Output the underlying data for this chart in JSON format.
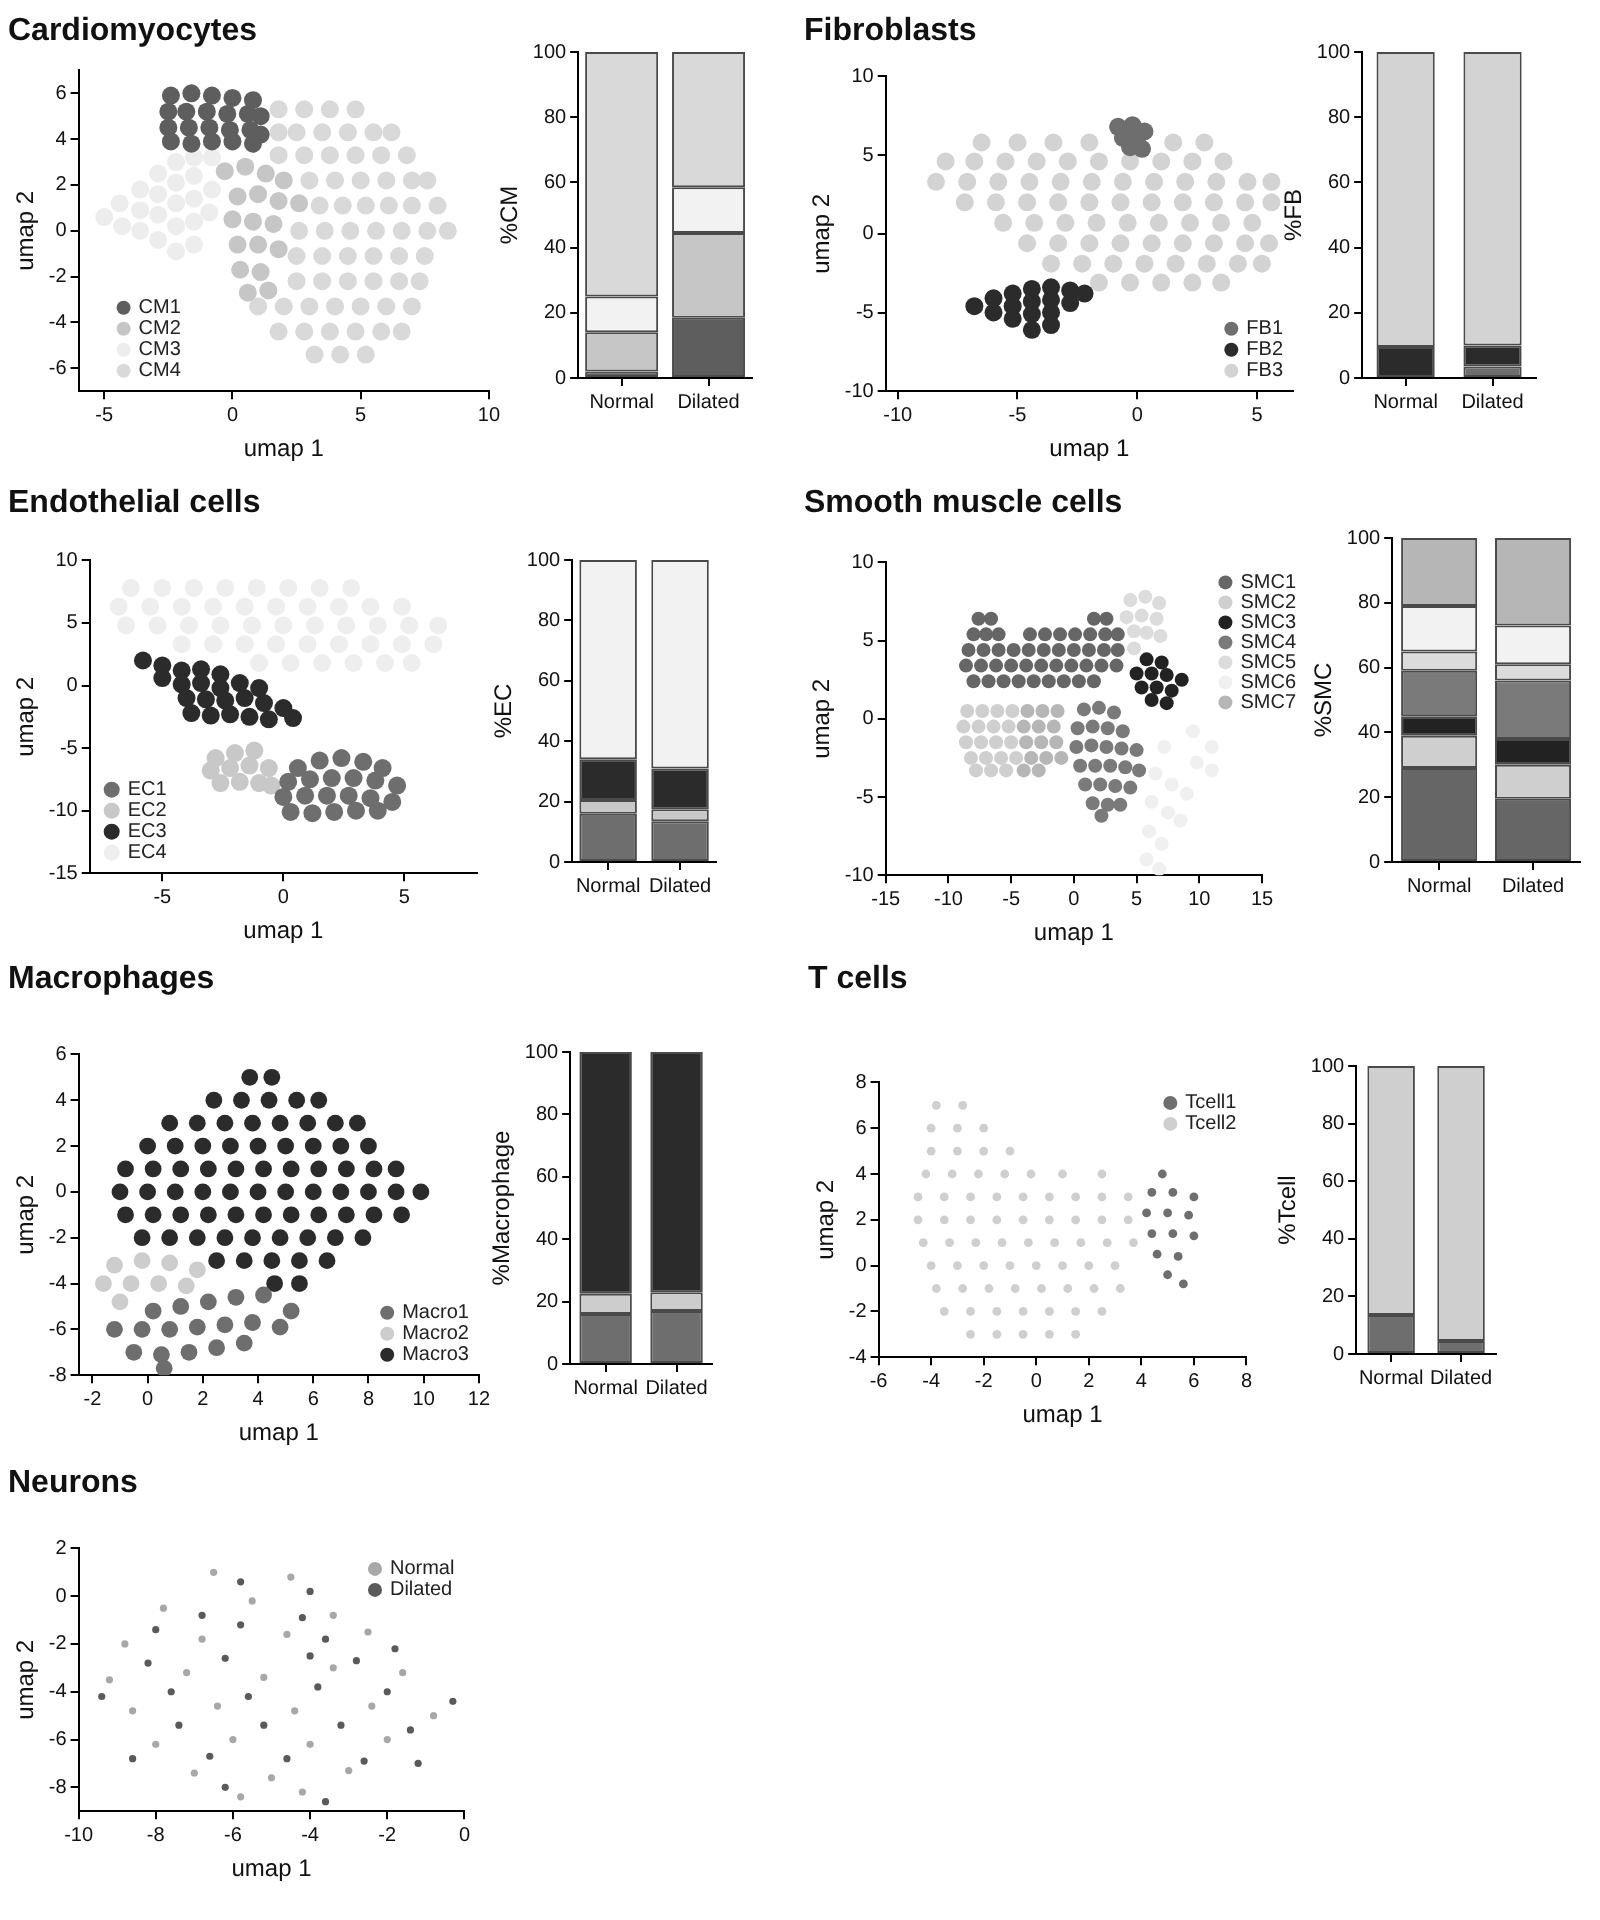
{
  "chart_data": [
    {
      "type": "scatter",
      "title": "Cardiomyocytes",
      "xlabel": "umap 1",
      "ylabel": "umap 2",
      "xlim": [
        -6,
        10
      ],
      "xticks": [
        -5,
        0,
        5,
        10
      ],
      "ylim": [
        -7,
        7
      ],
      "yticks": [
        -6,
        -4,
        -2,
        0,
        2,
        4,
        6
      ],
      "legend": "bottom left",
      "marker": "circle",
      "series": [
        {
          "name": "CM1",
          "color": "#5e5e5e",
          "x": [
            -2.4,
            -1.6,
            -0.8,
            0,
            0.8,
            -2.5,
            -1.8,
            -1,
            -0.2,
            0.6,
            1.1,
            -2.5,
            -1.7,
            -0.9,
            -0.1,
            0.7,
            1.1,
            -2.4,
            -1.6,
            -0.8,
            0,
            0.8
          ],
          "values": [
            5.9,
            6,
            5.9,
            5.8,
            5.7,
            5.2,
            5.2,
            5.2,
            5.1,
            5.1,
            5,
            4.5,
            4.5,
            4.5,
            4.4,
            4.4,
            4.2,
            3.9,
            3.8,
            3.9,
            3.9,
            3.8
          ]
        },
        {
          "name": "CM2",
          "color": "#c6c6c6",
          "x": [
            -0.3,
            0.5,
            1.3,
            2,
            0.2,
            1,
            1.8,
            2.6,
            0,
            0.8,
            1.6,
            0.2,
            1,
            1.8,
            0.3,
            1.1,
            0.6,
            1.4
          ],
          "values": [
            2.6,
            2.8,
            2.5,
            2.2,
            1.5,
            1.6,
            1.3,
            1.2,
            0.5,
            0.4,
            0.3,
            -0.6,
            -0.6,
            -0.8,
            -1.7,
            -1.8,
            -2.7,
            -2.6
          ]
        },
        {
          "name": "CM3",
          "color": "#ededed",
          "x": [
            -5,
            -4.4,
            -4.3,
            -3.6,
            -3.6,
            -3.6,
            -2.9,
            -2.9,
            -2.9,
            -2.9,
            -2.2,
            -2.2,
            -2.2,
            -2.2,
            -2.2,
            -1.5,
            -1.5,
            -1.5,
            -1.5,
            -1.5,
            -0.8,
            -0.8,
            -0.9
          ],
          "values": [
            0.6,
            1.2,
            0.2,
            1.8,
            0.9,
            0,
            2.5,
            1.6,
            0.7,
            -0.4,
            3,
            2.1,
            1.2,
            0.2,
            -0.9,
            3.2,
            2.4,
            1.4,
            0.4,
            -0.6,
            3.2,
            1.8,
            0.8
          ]
        },
        {
          "name": "CM4",
          "color": "#d9d9d9",
          "x": [
            1.8,
            2.8,
            3.8,
            4.8,
            1.8,
            2.5,
            3.5,
            4.5,
            5.5,
            6.2,
            1.8,
            2.8,
            3.8,
            4.8,
            5.8,
            6.8,
            3,
            4,
            5,
            6,
            7,
            7.6,
            3.4,
            4.3,
            5.2,
            6.1,
            7,
            8,
            2.6,
            3.6,
            4.6,
            5.6,
            6.6,
            7.6,
            8.4,
            2.5,
            3.5,
            4.5,
            5.5,
            6.5,
            7.5,
            2.5,
            3.5,
            4.5,
            5.5,
            6.5,
            7.3,
            1,
            2,
            3,
            4,
            5,
            6,
            7,
            1.8,
            2.8,
            3.8,
            4.8,
            5.8,
            6.6,
            3.2,
            4.2,
            5.2
          ],
          "values": [
            5.3,
            5.3,
            5.3,
            5.3,
            4.3,
            4.3,
            4.3,
            4.3,
            4.3,
            4.3,
            3.3,
            3.3,
            3.3,
            3.3,
            3.3,
            3.3,
            2.2,
            2.2,
            2.2,
            2.2,
            2.2,
            2.2,
            1.1,
            1.1,
            1.1,
            1.1,
            1.1,
            1.1,
            0,
            0,
            0,
            0,
            0,
            0,
            0,
            -1.1,
            -1.1,
            -1.1,
            -1.1,
            -1.1,
            -1.1,
            -2.2,
            -2.2,
            -2.2,
            -2.2,
            -2.2,
            -2.2,
            -3.3,
            -3.3,
            -3.3,
            -3.3,
            -3.3,
            -3.3,
            -3.3,
            -4.4,
            -4.4,
            -4.4,
            -4.4,
            -4.4,
            -4.4,
            -5.4,
            -5.4,
            -5.4
          ]
        }
      ]
    },
    {
      "type": "bar",
      "ylabel": "%CM",
      "categories": [
        "Normal",
        "Dilated"
      ],
      "stacked": true,
      "ylim": [
        0,
        100
      ],
      "yticks": [
        0,
        20,
        40,
        60,
        80,
        100
      ],
      "series": [
        {
          "color": "#5e5e5e",
          "values": [
            2,
            18.5
          ]
        },
        {
          "color": "#c6c6c6",
          "values": [
            12,
            26
          ]
        },
        {
          "color": "#f2f2f2",
          "values": [
            11,
            14
          ]
        },
        {
          "color": "#d9d9d9",
          "values": [
            75,
            41.5
          ]
        }
      ]
    },
    {
      "type": "scatter",
      "title": "Fibroblasts",
      "xlabel": "umap 1",
      "ylabel": "umap 2",
      "xlim": [
        -10.5,
        6.5
      ],
      "xticks": [
        -10,
        -5,
        0,
        5
      ],
      "ylim": [
        -10,
        10
      ],
      "yticks": [
        -10,
        -5,
        0,
        5,
        10
      ],
      "legend": "bottom right",
      "marker": "circle",
      "series": [
        {
          "name": "FB1",
          "color": "#6e6e6e",
          "x": [
            -0.8,
            -0.2,
            0.3,
            -0.6,
            0,
            -0.3,
            0.2
          ],
          "values": [
            6.8,
            6.9,
            6.5,
            6.1,
            6.1,
            5.5,
            5.4
          ]
        },
        {
          "name": "FB2",
          "color": "#2b2b2b",
          "x": [
            -6.8,
            -6,
            -6,
            -5.2,
            -5.2,
            -5.2,
            -4.4,
            -4.4,
            -4.4,
            -4.4,
            -3.6,
            -3.6,
            -3.6,
            -3.6,
            -2.8,
            -2.8,
            -2.2
          ],
          "values": [
            -4.6,
            -4.1,
            -5,
            -3.8,
            -4.6,
            -5.4,
            -3.5,
            -4.3,
            -5.1,
            -6.1,
            -3.4,
            -4.2,
            -5,
            -5.8,
            -3.6,
            -4.4,
            -3.8
          ]
        },
        {
          "name": "FB3",
          "color": "#d3d3d3",
          "x": [
            -6.5,
            -5,
            -3.5,
            -2,
            1.5,
            2.8,
            -8,
            -6.8,
            -5.5,
            -4.2,
            -2.9,
            -1.6,
            -0.3,
            1,
            2.3,
            3.6,
            -8.4,
            -7.1,
            -5.8,
            -4.5,
            -3.2,
            -1.9,
            -0.6,
            0.7,
            2,
            3.3,
            4.6,
            5.6,
            -7.2,
            -5.9,
            -4.6,
            -3.3,
            -2,
            -0.7,
            0.6,
            1.9,
            3.2,
            4.5,
            5.6,
            -5.6,
            -4.3,
            -3,
            -1.7,
            -0.4,
            0.9,
            2.2,
            3.5,
            4.8,
            -4.6,
            -3.3,
            -2,
            -0.7,
            0.6,
            1.9,
            3.2,
            4.5,
            5.5,
            -3.6,
            -2.3,
            -1,
            0.3,
            1.6,
            2.9,
            4.2,
            5.2,
            -1.6,
            -0.3,
            1,
            2.3,
            3.5
          ],
          "values": [
            5.8,
            5.8,
            5.8,
            5.8,
            5.8,
            5.8,
            4.6,
            4.6,
            4.6,
            4.6,
            4.6,
            4.6,
            4.6,
            4.6,
            4.6,
            4.6,
            3.3,
            3.3,
            3.3,
            3.3,
            3.3,
            3.3,
            3.3,
            3.3,
            3.3,
            3.3,
            3.3,
            3.3,
            2,
            2,
            2,
            2,
            2,
            2,
            2,
            2,
            2,
            2,
            2,
            0.7,
            0.7,
            0.7,
            0.7,
            0.7,
            0.7,
            0.7,
            0.7,
            0.7,
            -0.6,
            -0.6,
            -0.6,
            -0.6,
            -0.6,
            -0.6,
            -0.6,
            -0.6,
            -0.6,
            -1.9,
            -1.9,
            -1.9,
            -1.9,
            -1.9,
            -1.9,
            -1.9,
            -1.9,
            -3.1,
            -3.1,
            -3.1,
            -3.1,
            -3.1
          ]
        }
      ]
    },
    {
      "type": "bar",
      "ylabel": "%FB",
      "categories": [
        "Normal",
        "Dilated"
      ],
      "stacked": true,
      "ylim": [
        0,
        100
      ],
      "yticks": [
        0,
        20,
        40,
        60,
        80,
        100
      ],
      "series": [
        {
          "color": "#6e6e6e",
          "values": [
            0,
            3.5
          ]
        },
        {
          "color": "#2b2b2b",
          "values": [
            9.5,
            6.5
          ]
        },
        {
          "color": "#d3d3d3",
          "values": [
            90.5,
            90
          ]
        }
      ]
    },
    {
      "type": "scatter",
      "title": "Endothelial cells",
      "xlabel": "umap 1",
      "ylabel": "umap 2",
      "xlim": [
        -8,
        8
      ],
      "xticks": [
        -5,
        0,
        5
      ],
      "ylim": [
        -15,
        10
      ],
      "yticks": [
        -15,
        -10,
        -5,
        0,
        5,
        10
      ],
      "legend": "bottom left",
      "marker": "circle",
      "series": [
        {
          "name": "EC1",
          "color": "#6e6e6e",
          "x": [
            0.6,
            1.5,
            2.4,
            3.3,
            4.1,
            0.2,
            1.1,
            2,
            2.9,
            3.8,
            4.7,
            0,
            0.9,
            1.8,
            2.7,
            3.6,
            4.5,
            0.3,
            1.2,
            2.1,
            3,
            3.9
          ],
          "values": [
            -6.6,
            -6,
            -5.8,
            -6.1,
            -6.6,
            -7.7,
            -7.5,
            -7.4,
            -7.4,
            -7.6,
            -8,
            -8.9,
            -8.8,
            -8.8,
            -8.8,
            -9,
            -9.3,
            -10.1,
            -10.2,
            -10.1,
            -10,
            -10
          ]
        },
        {
          "name": "EC2",
          "color": "#c8c8c8",
          "x": [
            -2.8,
            -2,
            -1.2,
            -3,
            -2.2,
            -1.4,
            -0.6,
            -2.6,
            -1.8,
            -1,
            -0.5
          ],
          "values": [
            -5.8,
            -5.4,
            -5.2,
            -6.8,
            -6.6,
            -6.4,
            -6.6,
            -7.8,
            -7.7,
            -7.8,
            -8
          ]
        },
        {
          "name": "EC3",
          "color": "#2b2b2b",
          "x": [
            -5.8,
            -5,
            -4.2,
            -3.4,
            -2.6,
            -5,
            -4.2,
            -3.4,
            -2.6,
            -1.8,
            -1,
            -4,
            -3.2,
            -2.4,
            -1.6,
            -0.8,
            0,
            -3.8,
            -3,
            -2.2,
            -1.4,
            -0.6,
            0.4
          ],
          "values": [
            2,
            1.6,
            1.2,
            1.3,
            0.9,
            0.6,
            0.1,
            0.2,
            -0.2,
            0.2,
            -0.2,
            -1,
            -1.1,
            -1.2,
            -1,
            -1.4,
            -1.8,
            -2.2,
            -2.4,
            -2.3,
            -2.5,
            -2.7,
            -2.6
          ]
        },
        {
          "name": "EC4",
          "color": "#eeeeee",
          "x": [
            -6.3,
            -5,
            -3.7,
            -2.4,
            -1.1,
            0.2,
            1.5,
            2.8,
            -6.8,
            -5.5,
            -4.2,
            -2.9,
            -1.6,
            -0.3,
            1,
            2.3,
            3.6,
            4.9,
            -6.5,
            -5.2,
            -3.9,
            -2.6,
            -1.3,
            0,
            1.3,
            2.6,
            3.9,
            5.2,
            6.4,
            -4.2,
            -2.9,
            -1.6,
            -0.3,
            1,
            2.3,
            3.6,
            4.9,
            6.2,
            -1,
            0.3,
            1.6,
            2.9,
            4.2,
            5.3
          ],
          "values": [
            7.8,
            7.8,
            7.8,
            7.8,
            7.8,
            7.8,
            7.8,
            7.8,
            6.3,
            6.3,
            6.3,
            6.3,
            6.3,
            6.3,
            6.3,
            6.3,
            6.3,
            6.3,
            4.8,
            4.8,
            4.8,
            4.8,
            4.8,
            4.8,
            4.8,
            4.8,
            4.8,
            4.8,
            4.8,
            3.3,
            3.3,
            3.3,
            3.3,
            3.3,
            3.3,
            3.3,
            3.3,
            3.3,
            1.8,
            1.8,
            1.8,
            1.8,
            1.8,
            1.8
          ]
        }
      ]
    },
    {
      "type": "bar",
      "ylabel": "%EC",
      "categories": [
        "Normal",
        "Dilated"
      ],
      "stacked": true,
      "ylim": [
        0,
        100
      ],
      "yticks": [
        0,
        20,
        40,
        60,
        80,
        100
      ],
      "series": [
        {
          "color": "#6e6e6e",
          "values": [
            16,
            13.5
          ]
        },
        {
          "color": "#c8c8c8",
          "values": [
            4.5,
            4
          ]
        },
        {
          "color": "#2b2b2b",
          "values": [
            13.5,
            13.5
          ]
        },
        {
          "color": "#f2f2f2",
          "values": [
            66,
            69
          ]
        }
      ]
    },
    {
      "type": "scatter",
      "title": "Smooth muscle cells",
      "xlabel": "umap 1",
      "ylabel": "umap 2",
      "xlim": [
        -15,
        15
      ],
      "xticks": [
        -15,
        -10,
        -5,
        0,
        5,
        10,
        15
      ],
      "ylim": [
        -10,
        10
      ],
      "yticks": [
        -10,
        -5,
        0,
        5,
        10
      ],
      "legend": "top right",
      "marker": "circle",
      "series": [
        {
          "name": "SMC1",
          "color": "#666666",
          "x": [
            -7.6,
            -6.6,
            1.6,
            2.6,
            -8,
            -7,
            -6,
            -3.5,
            -2.3,
            -1.1,
            0.1,
            1.3,
            2.5,
            3.5,
            -8.4,
            -7.2,
            -6,
            -4.8,
            -3.6,
            -2.4,
            -1.2,
            0,
            1.2,
            2.4,
            3.5,
            -8.6,
            -7.4,
            -6.2,
            -5,
            -3.8,
            -2.6,
            -1.4,
            -0.2,
            1,
            2.2,
            3.4,
            -8,
            -6.8,
            -5.6,
            -4.4,
            -3.2,
            -2,
            -0.8,
            0.4,
            1.6
          ],
          "values": [
            6.4,
            6.4,
            6.4,
            6.4,
            5.4,
            5.4,
            5.4,
            5.4,
            5.4,
            5.4,
            5.4,
            5.4,
            5.4,
            5.4,
            4.4,
            4.4,
            4.4,
            4.4,
            4.4,
            4.4,
            4.4,
            4.4,
            4.4,
            4.4,
            4.4,
            3.4,
            3.4,
            3.4,
            3.4,
            3.4,
            3.4,
            3.4,
            3.4,
            3.4,
            3.4,
            3.4,
            2.4,
            2.4,
            2.4,
            2.4,
            2.4,
            2.4,
            2.4,
            2.4,
            2.4
          ]
        },
        {
          "name": "SMC2",
          "color": "#cfcfcf",
          "x": [
            -8.5,
            -7.3,
            -6.1,
            -4.9,
            -8.8,
            -7.6,
            -6.4,
            -5.2,
            -8.6,
            -7.4,
            -6.2,
            -5,
            -8.2,
            -7,
            -5.8,
            -4.6,
            -7.8,
            -6.6,
            -5.4
          ],
          "values": [
            0.5,
            0.5,
            0.5,
            0.5,
            -0.5,
            -0.5,
            -0.5,
            -0.5,
            -1.5,
            -1.5,
            -1.5,
            -1.5,
            -2.5,
            -2.5,
            -2.5,
            -2.5,
            -3.3,
            -3.3,
            -3.3
          ]
        },
        {
          "name": "SMC3",
          "color": "#222222",
          "x": [
            5.8,
            7,
            5,
            6.2,
            7.4,
            8.6,
            5.4,
            6.6,
            7.8,
            6.2,
            7.4
          ],
          "values": [
            3.8,
            3.6,
            2.9,
            2.9,
            2.8,
            2.5,
            2,
            2,
            1.8,
            1.2,
            1
          ]
        },
        {
          "name": "SMC4",
          "color": "#7a7a7a",
          "x": [
            0.8,
            2,
            3.2,
            0.3,
            1.5,
            2.7,
            3.9,
            0.2,
            1.4,
            2.6,
            3.8,
            5,
            0.5,
            1.7,
            2.9,
            4.1,
            5.2,
            0.9,
            2.1,
            3.3,
            4.5,
            1.5,
            2.7,
            3.7,
            2.2
          ],
          "values": [
            0.6,
            0.7,
            0.4,
            -0.6,
            -0.5,
            -0.6,
            -0.8,
            -1.8,
            -1.7,
            -1.8,
            -1.9,
            -2,
            -3,
            -3,
            -3,
            -3.1,
            -3.3,
            -4.2,
            -4.2,
            -4.3,
            -4.4,
            -5.4,
            -5.5,
            -5.5,
            -6.2
          ]
        },
        {
          "name": "SMC5",
          "color": "#dcdcdc",
          "x": [
            4.5,
            5.7,
            6.8,
            4.2,
            5.4,
            6.6,
            4.8,
            5.8,
            6.9,
            4.8
          ],
          "values": [
            7.6,
            7.8,
            7.4,
            6.5,
            6.6,
            6.4,
            5.6,
            5.5,
            5.3,
            4.5
          ]
        },
        {
          "name": "SMC6",
          "color": "#f0f0f0",
          "x": [
            9.5,
            11,
            7.2,
            9.8,
            11,
            6.5,
            7.8,
            9,
            6.2,
            7.5,
            8.5,
            6,
            7,
            5.8,
            6.8
          ],
          "values": [
            -0.8,
            -1.8,
            -1.8,
            -2.8,
            -3.3,
            -3.5,
            -4.2,
            -4.8,
            -5.3,
            -6,
            -6.5,
            -7.2,
            -8,
            -9,
            -9.6
          ]
        },
        {
          "name": "SMC7",
          "color": "#b6b6b6",
          "x": [
            -3.7,
            -2.5,
            -1.3,
            -4,
            -2.8,
            -1.6,
            -3.8,
            -2.6,
            -1.4,
            -3.4,
            -2.2,
            -1,
            -4,
            -2.8
          ],
          "values": [
            0.5,
            0.5,
            0.5,
            -0.5,
            -0.5,
            -0.5,
            -1.5,
            -1.5,
            -1.5,
            -2.5,
            -2.5,
            -2.5,
            -3.3,
            -3.3
          ]
        }
      ]
    },
    {
      "type": "bar",
      "ylabel": "%SMC",
      "categories": [
        "Normal",
        "Dilated"
      ],
      "stacked": true,
      "ylim": [
        0,
        100
      ],
      "yticks": [
        0,
        20,
        40,
        60,
        80,
        100
      ],
      "series": [
        {
          "color": "#666666",
          "values": [
            29,
            19.5
          ]
        },
        {
          "color": "#cfcfcf",
          "values": [
            10,
            10.5
          ]
        },
        {
          "color": "#222222",
          "values": [
            6,
            8
          ]
        },
        {
          "color": "#7a7a7a",
          "values": [
            14,
            18
          ]
        },
        {
          "color": "#dcdcdc",
          "values": [
            6,
            5
          ]
        },
        {
          "color": "#f2f2f2",
          "values": [
            14,
            12
          ]
        },
        {
          "color": "#b6b6b6",
          "values": [
            21,
            27
          ]
        }
      ]
    },
    {
      "type": "scatter",
      "title": "Macrophages",
      "xlabel": "umap 1",
      "ylabel": "umap 2",
      "xlim": [
        -2.5,
        12
      ],
      "xticks": [
        -2,
        0,
        2,
        4,
        6,
        8,
        10,
        12
      ],
      "ylim": [
        -8,
        6
      ],
      "yticks": [
        -8,
        -6,
        -4,
        -2,
        0,
        2,
        4,
        6
      ],
      "legend": "bottom right",
      "marker": "circle",
      "series": [
        {
          "name": "Macro1",
          "color": "#6e6e6e",
          "x": [
            0.2,
            1.2,
            2.2,
            3.2,
            4.2,
            5.2,
            -1.2,
            -0.2,
            0.8,
            1.8,
            2.8,
            3.8,
            4.8,
            -0.5,
            0.5,
            1.5,
            2.5,
            3.5,
            0.6
          ],
          "values": [
            -5.2,
            -5,
            -4.8,
            -4.6,
            -4.5,
            -5.2,
            -6,
            -6,
            -6,
            -5.9,
            -5.8,
            -5.7,
            -5.9,
            -7,
            -7.1,
            -7,
            -6.8,
            -6.6,
            -7.7
          ]
        },
        {
          "name": "Macro2",
          "color": "#cdcdcd",
          "x": [
            -1.2,
            -0.2,
            0.8,
            1.8,
            -1.6,
            -0.6,
            0.4,
            1.4,
            -1
          ],
          "values": [
            -3.2,
            -3,
            -3.1,
            -3.4,
            -4,
            -4,
            -4,
            -4.1,
            -4.8
          ]
        },
        {
          "name": "Macro3",
          "color": "#2b2b2b",
          "x": [
            3.7,
            4.5,
            2.4,
            3.4,
            4.4,
            5.4,
            6.2,
            0.8,
            1.8,
            2.8,
            3.8,
            4.8,
            5.8,
            6.8,
            7.6,
            0,
            1,
            2,
            3,
            4,
            5,
            6,
            7,
            8,
            -0.8,
            0.2,
            1.2,
            2.2,
            3.2,
            4.2,
            5.2,
            6.2,
            7.2,
            8.2,
            9,
            -1,
            0,
            1,
            2,
            3,
            4,
            5,
            6,
            7,
            8,
            9,
            9.9,
            -0.8,
            0.2,
            1.2,
            2.2,
            3.2,
            4.2,
            5.2,
            6.2,
            7.2,
            8.2,
            9.2,
            -0.2,
            0.8,
            1.8,
            2.8,
            3.8,
            4.8,
            5.8,
            6.8,
            7.8,
            2.5,
            3.5,
            4.5,
            5.5,
            6.5,
            4.6,
            5.5
          ],
          "values": [
            5,
            5,
            4,
            4,
            4,
            4,
            4,
            3,
            3,
            3,
            3,
            3,
            3,
            3,
            3,
            2,
            2,
            2,
            2,
            2,
            2,
            2,
            2,
            2,
            1,
            1,
            1,
            1,
            1,
            1,
            1,
            1,
            1,
            1,
            1,
            0,
            0,
            0,
            0,
            0,
            0,
            0,
            0,
            0,
            0,
            0,
            0,
            -1,
            -1,
            -1,
            -1,
            -1,
            -1,
            -1,
            -1,
            -1,
            -1,
            -1,
            -2,
            -2,
            -2,
            -2,
            -2,
            -2,
            -2,
            -2,
            -2,
            -3,
            -3,
            -3,
            -3,
            -3,
            -4,
            -4
          ]
        }
      ]
    },
    {
      "type": "bar",
      "ylabel": "%Macrophage",
      "categories": [
        "Normal",
        "Dilated"
      ],
      "stacked": true,
      "ylim": [
        0,
        100
      ],
      "yticks": [
        0,
        20,
        40,
        60,
        80,
        100
      ],
      "series": [
        {
          "color": "#6e6e6e",
          "values": [
            16,
            17
          ]
        },
        {
          "color": "#cdcdcd",
          "values": [
            6.5,
            6
          ]
        },
        {
          "color": "#2b2b2b",
          "values": [
            77.5,
            77
          ]
        }
      ]
    },
    {
      "type": "scatter",
      "title": "T cells",
      "xlabel": "umap 1",
      "ylabel": "umap 2",
      "xlim": [
        -6,
        8
      ],
      "xticks": [
        -6,
        -4,
        -2,
        0,
        2,
        4,
        6,
        8
      ],
      "ylim": [
        -4,
        8
      ],
      "yticks": [
        -4,
        -2,
        0,
        2,
        4,
        6,
        8
      ],
      "legend": "top right",
      "marker": "circle",
      "series": [
        {
          "name": "Tcell1",
          "color": "#6e6e6e",
          "x": [
            4.8,
            4.4,
            5.2,
            6,
            4.2,
            5,
            5.8,
            4.4,
            5.2,
            6,
            4.6,
            5.4,
            5,
            5.6
          ],
          "values": [
            4,
            3.2,
            3.2,
            3,
            2.3,
            2.3,
            2.2,
            1.4,
            1.4,
            1.3,
            0.5,
            0.4,
            -0.4,
            -0.8
          ]
        },
        {
          "name": "Tcell2",
          "color": "#cfcfcf",
          "x": [
            -3.8,
            -2.8,
            -4,
            -3,
            -2,
            -4,
            -3,
            -2,
            -1,
            -4.2,
            -3.2,
            -2.2,
            -1.2,
            -0.2,
            1,
            2.5,
            -4.5,
            -3.5,
            -2.5,
            -1.5,
            -0.5,
            0.5,
            1.5,
            2.5,
            3.5,
            -4.5,
            -3.5,
            -2.5,
            -1.5,
            -0.5,
            0.5,
            1.5,
            2.5,
            3.5,
            -4.3,
            -3.3,
            -2.3,
            -1.3,
            -0.3,
            0.7,
            1.7,
            2.7,
            3.7,
            -4,
            -3,
            -2,
            -1,
            0,
            1,
            2,
            3,
            -3.8,
            -2.8,
            -1.8,
            -0.8,
            0.2,
            1.2,
            2.2,
            3.2,
            -3.5,
            -2.5,
            -1.5,
            -0.5,
            0.5,
            1.5,
            2.5,
            -2.5,
            -1.5,
            -0.5,
            0.5,
            1.5
          ],
          "values": [
            7,
            7,
            6,
            6,
            6,
            5,
            5,
            5,
            5,
            4,
            4,
            4,
            4,
            4,
            4,
            4,
            3,
            3,
            3,
            3,
            3,
            3,
            3,
            3,
            3,
            2,
            2,
            2,
            2,
            2,
            2,
            2,
            2,
            2,
            1,
            1,
            1,
            1,
            1,
            1,
            1,
            1,
            1,
            0,
            0,
            0,
            0,
            0,
            0,
            0,
            0,
            -1,
            -1,
            -1,
            -1,
            -1,
            -1,
            -1,
            -1,
            -2,
            -2,
            -2,
            -2,
            -2,
            -2,
            -2,
            -3,
            -3,
            -3,
            -3,
            -3
          ]
        }
      ]
    },
    {
      "type": "bar",
      "ylabel": "%Tcell",
      "categories": [
        "Normal",
        "Dilated"
      ],
      "stacked": true,
      "ylim": [
        0,
        100
      ],
      "yticks": [
        0,
        20,
        40,
        60,
        80,
        100
      ],
      "series": [
        {
          "color": "#6e6e6e",
          "values": [
            13.5,
            4.5
          ]
        },
        {
          "color": "#cfcfcf",
          "values": [
            86.5,
            95.5
          ]
        }
      ]
    },
    {
      "type": "scatter",
      "title": "Neurons",
      "xlabel": "umap 1",
      "ylabel": "umap 2",
      "xlim": [
        -10,
        0
      ],
      "xticks": [
        -10,
        -8,
        -6,
        -4,
        -2,
        0
      ],
      "ylim": [
        -9,
        2
      ],
      "yticks": [
        -8,
        -6,
        -4,
        -2,
        0,
        2
      ],
      "legend": "top right",
      "marker": "circle",
      "series": [
        {
          "name": "Normal",
          "color": "#a8a8a8",
          "x": [
            -6.5,
            -4.5,
            -7.8,
            -5.5,
            -3.4,
            -8.8,
            -6.8,
            -4.6,
            -2.5,
            -9.2,
            -7.2,
            -5.2,
            -3.4,
            -1.6,
            -8.6,
            -6.4,
            -4.4,
            -2.4,
            -0.8,
            -8,
            -6,
            -4,
            -2,
            -7,
            -5,
            -3,
            -5.8,
            -4.2
          ],
          "values": [
            1,
            0.8,
            -0.5,
            -0.2,
            -0.8,
            -2,
            -1.8,
            -1.6,
            -1.5,
            -3.5,
            -3.2,
            -3.4,
            -3,
            -3.2,
            -4.8,
            -4.6,
            -4.8,
            -4.6,
            -5,
            -6.2,
            -6,
            -6.2,
            -6,
            -7.4,
            -7.6,
            -7.3,
            -8.4,
            -8.2
          ]
        },
        {
          "name": "Dilated",
          "color": "#5a5a5a",
          "x": [
            -5.8,
            -4,
            -6.8,
            -4.2,
            -8,
            -5.8,
            -3.6,
            -1.8,
            -8.2,
            -6.2,
            -4,
            -2.8,
            -9.4,
            -7.6,
            -5.6,
            -3.8,
            -2,
            -0.3,
            -7.4,
            -5.2,
            -3.2,
            -1.4,
            -8.6,
            -6.6,
            -4.6,
            -2.6,
            -1.2,
            -6.2,
            -3.6
          ],
          "values": [
            0.6,
            0.2,
            -0.8,
            -0.9,
            -1.4,
            -1.2,
            -1.8,
            -2.2,
            -2.8,
            -2.6,
            -2.5,
            -2.7,
            -4.2,
            -4,
            -4.2,
            -3.8,
            -4,
            -4.4,
            -5.4,
            -5.4,
            -5.4,
            -5.6,
            -6.8,
            -6.7,
            -6.8,
            -6.9,
            -7,
            -8,
            -8.6
          ]
        }
      ]
    }
  ]
}
